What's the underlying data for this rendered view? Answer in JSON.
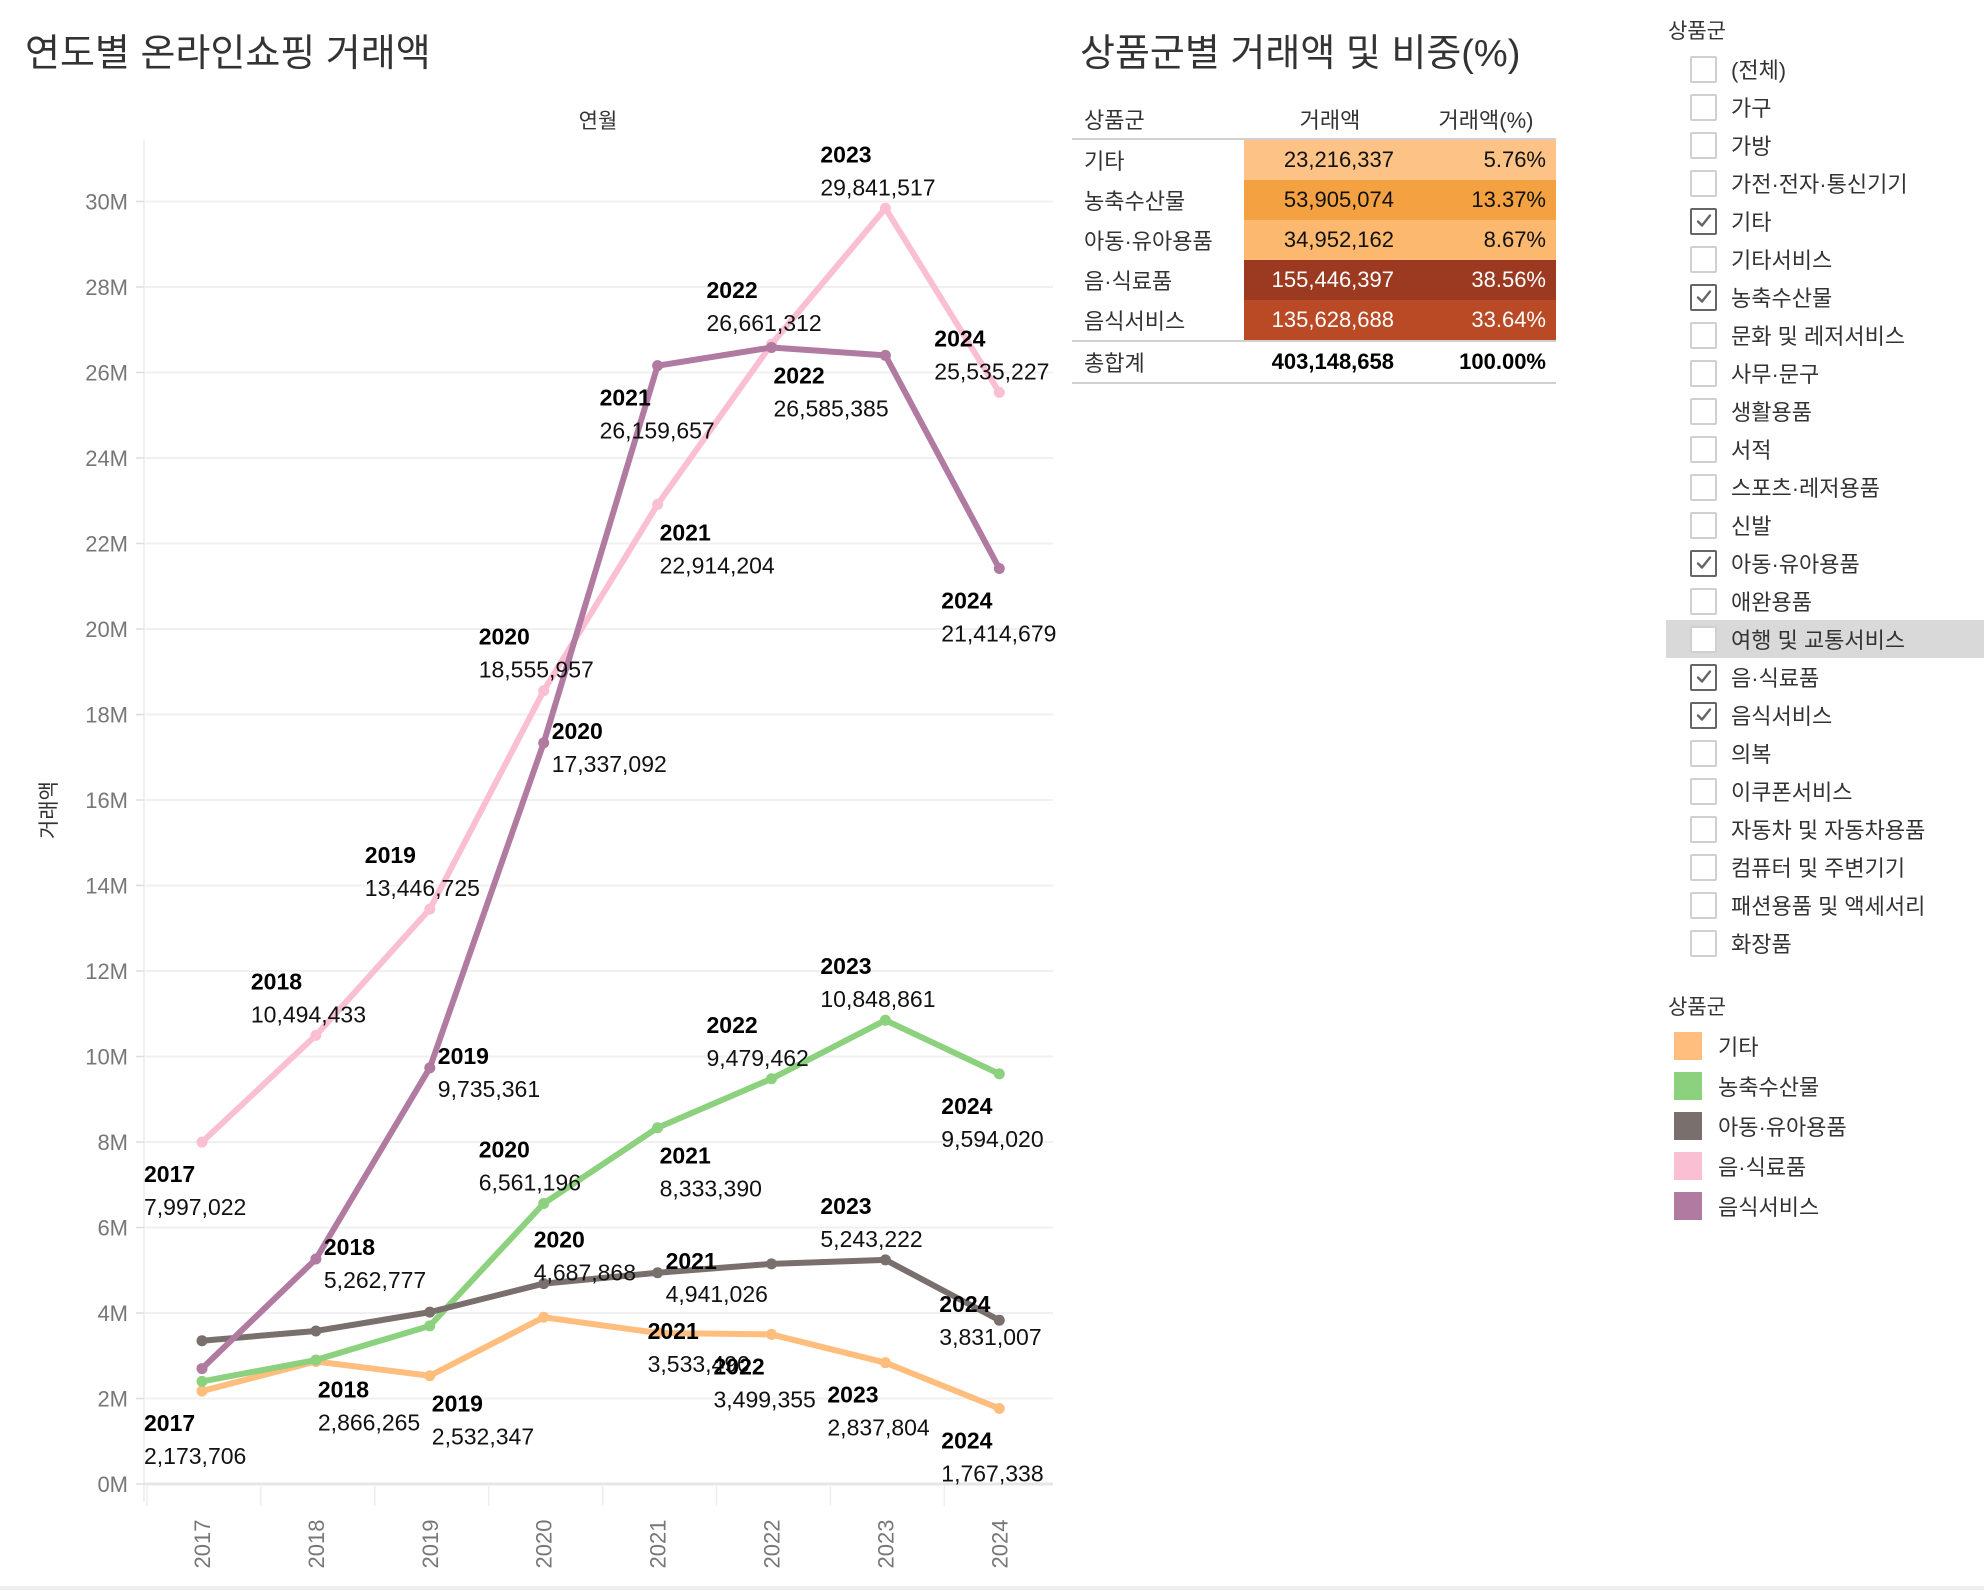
{
  "chart": {
    "title": "연도별 온라인쇼핑 거래액"
  },
  "table": {
    "title": "상품군별 거래액 및 비중(%)",
    "headers": [
      "상품군",
      "거래액",
      "거래액(%)"
    ],
    "rows": [
      {
        "name": "기타",
        "amount": "23,216,337",
        "pct": "5.76%",
        "bg": "#fdc386",
        "fg": "#111111"
      },
      {
        "name": "농축수산물",
        "amount": "53,905,074",
        "pct": "13.37%",
        "bg": "#f4a142",
        "fg": "#111111"
      },
      {
        "name": "아동·유아용품",
        "amount": "34,952,162",
        "pct": "8.67%",
        "bg": "#fcb86f",
        "fg": "#111111"
      },
      {
        "name": "음·식료품",
        "amount": "155,446,397",
        "pct": "38.56%",
        "bg": "#9c3a21",
        "fg": "#ffffff"
      },
      {
        "name": "음식서비스",
        "amount": "135,628,688",
        "pct": "33.64%",
        "bg": "#b94a25",
        "fg": "#ffffff"
      }
    ],
    "total": {
      "name": "총합계",
      "amount": "403,148,658",
      "pct": "100.00%"
    }
  },
  "filter": {
    "title": "상품군",
    "items": [
      {
        "label": "(전체)",
        "checked": false
      },
      {
        "label": "가구",
        "checked": false
      },
      {
        "label": "가방",
        "checked": false
      },
      {
        "label": "가전·전자·통신기기",
        "checked": false
      },
      {
        "label": "기타",
        "checked": true
      },
      {
        "label": "기타서비스",
        "checked": false
      },
      {
        "label": "농축수산물",
        "checked": true
      },
      {
        "label": "문화 및 레저서비스",
        "checked": false
      },
      {
        "label": "사무·문구",
        "checked": false
      },
      {
        "label": "생활용품",
        "checked": false
      },
      {
        "label": "서적",
        "checked": false
      },
      {
        "label": "스포츠·레저용품",
        "checked": false
      },
      {
        "label": "신발",
        "checked": false
      },
      {
        "label": "아동·유아용품",
        "checked": true
      },
      {
        "label": "애완용품",
        "checked": false
      },
      {
        "label": "여행 및 교통서비스",
        "checked": false,
        "hover": true
      },
      {
        "label": "음·식료품",
        "checked": true
      },
      {
        "label": "음식서비스",
        "checked": true
      },
      {
        "label": "의복",
        "checked": false
      },
      {
        "label": "이쿠폰서비스",
        "checked": false
      },
      {
        "label": "자동차 및 자동차용품",
        "checked": false
      },
      {
        "label": "컴퓨터 및 주변기기",
        "checked": false
      },
      {
        "label": "패션용품 및 액세서리",
        "checked": false
      },
      {
        "label": "화장품",
        "checked": false
      }
    ]
  },
  "legend": {
    "title": "상품군",
    "items": [
      {
        "label": "기타",
        "color": "#ffbe7d"
      },
      {
        "label": "농축수산물",
        "color": "#8cd17d"
      },
      {
        "label": "아동·유아용품",
        "color": "#79706e"
      },
      {
        "label": "음·식료품",
        "color": "#fabfd2"
      },
      {
        "label": "음식서비스",
        "color": "#b07aa1"
      }
    ]
  },
  "chart_data": {
    "type": "line",
    "title": "연도별 온라인쇼핑 거래액",
    "xlabel": "연월",
    "ylabel": "거래액",
    "x": [
      "2017",
      "2018",
      "2019",
      "2020",
      "2021",
      "2022",
      "2023",
      "2024"
    ],
    "ylim": [
      0,
      31000000
    ],
    "yticks": [
      0,
      2000000,
      4000000,
      6000000,
      8000000,
      10000000,
      12000000,
      14000000,
      16000000,
      18000000,
      20000000,
      22000000,
      24000000,
      26000000,
      28000000,
      30000000
    ],
    "ytick_labels": [
      "0M",
      "2M",
      "4M",
      "6M",
      "8M",
      "10M",
      "12M",
      "14M",
      "16M",
      "18M",
      "20M",
      "22M",
      "24M",
      "26M",
      "28M",
      "30M"
    ],
    "grid": true,
    "legend": "right",
    "series": [
      {
        "name": "기타",
        "color": "#ffbe7d",
        "values": [
          2173706,
          2866265,
          2532347,
          3900000,
          3533490,
          3499355,
          2837804,
          1767338
        ],
        "labels": [
          {
            "x": "2017",
            "year": "2017",
            "value": "2,173,706",
            "pos": "below-left"
          },
          {
            "x": "2018",
            "year": "2018",
            "value": "2,866,265",
            "pos": "below"
          },
          {
            "x": "2019",
            "year": "2019",
            "value": "2,532,347",
            "pos": "below"
          },
          {
            "x": "2021",
            "year": "2021",
            "value": "3,533,490",
            "pos": "upper-left"
          },
          {
            "x": "2022",
            "year": "2022",
            "value": "3,499,355",
            "pos": "below-left"
          },
          {
            "x": "2023",
            "year": "2023",
            "value": "2,837,804",
            "pos": "below-left"
          },
          {
            "x": "2024",
            "year": "2024",
            "value": "1,767,338",
            "pos": "below-left"
          }
        ]
      },
      {
        "name": "농축수산물",
        "color": "#8cd17d",
        "values": [
          2400000,
          2900000,
          3700000,
          6561196,
          8333390,
          9479462,
          10848861,
          9594020
        ],
        "labels": [
          {
            "x": "2020",
            "year": "2020",
            "value": "6,561,196",
            "pos": "above-left"
          },
          {
            "x": "2021",
            "year": "2021",
            "value": "8,333,390",
            "pos": "below"
          },
          {
            "x": "2022",
            "year": "2022",
            "value": "9,479,462",
            "pos": "above-left"
          },
          {
            "x": "2023",
            "year": "2023",
            "value": "10,848,861",
            "pos": "above-left"
          },
          {
            "x": "2024",
            "year": "2024",
            "value": "9,594,020",
            "pos": "below-left"
          }
        ]
      },
      {
        "name": "아동·유아용품",
        "color": "#79706e",
        "values": [
          3350000,
          3580000,
          4020000,
          4687868,
          4941026,
          5150000,
          5243222,
          3831007
        ],
        "labels": [
          {
            "x": "2020",
            "year": "2020",
            "value": "4,687,868",
            "pos": "above"
          },
          {
            "x": "2021",
            "year": "2021",
            "value": "4,941,026",
            "pos": "right"
          },
          {
            "x": "2023",
            "year": "2023",
            "value": "5,243,222",
            "pos": "above-left"
          },
          {
            "x": "2024",
            "year": "2024",
            "value": "3,831,007",
            "pos": "left"
          }
        ]
      },
      {
        "name": "음·식료품",
        "color": "#fabfd2",
        "values": [
          7997022,
          10494433,
          13446725,
          18555957,
          22914204,
          26661312,
          29841517,
          25535227
        ],
        "labels": [
          {
            "x": "2017",
            "year": "2017",
            "value": "7,997,022",
            "pos": "below-left"
          },
          {
            "x": "2018",
            "year": "2018",
            "value": "10,494,433",
            "pos": "above-left"
          },
          {
            "x": "2019",
            "year": "2019",
            "value": "13,446,725",
            "pos": "above-left"
          },
          {
            "x": "2020",
            "year": "2020",
            "value": "18,555,957",
            "pos": "above-left"
          },
          {
            "x": "2021",
            "year": "2021",
            "value": "22,914,204",
            "pos": "below"
          },
          {
            "x": "2022",
            "year": "2022",
            "value": "26,661,312",
            "pos": "above-left"
          },
          {
            "x": "2023",
            "year": "2023",
            "value": "29,841,517",
            "pos": "above-left"
          },
          {
            "x": "2024",
            "year": "2024",
            "value": "25,535,227",
            "pos": "above-left"
          }
        ]
      },
      {
        "name": "음식서비스",
        "color": "#b07aa1",
        "values": [
          2700000,
          5262777,
          9735361,
          17337092,
          26159657,
          26585385,
          26400000,
          21414679
        ],
        "labels": [
          {
            "x": "2018",
            "year": "2018",
            "value": "5,262,777",
            "pos": "right"
          },
          {
            "x": "2019",
            "year": "2019",
            "value": "9,735,361",
            "pos": "right"
          },
          {
            "x": "2020",
            "year": "2020",
            "value": "17,337,092",
            "pos": "right"
          },
          {
            "x": "2021",
            "year": "2021",
            "value": "26,159,657",
            "pos": "below-left"
          },
          {
            "x": "2022",
            "year": "2022",
            "value": "26,585,385",
            "pos": "below"
          },
          {
            "x": "2024",
            "year": "2024",
            "value": "21,414,679",
            "pos": "below-left"
          }
        ]
      }
    ]
  }
}
